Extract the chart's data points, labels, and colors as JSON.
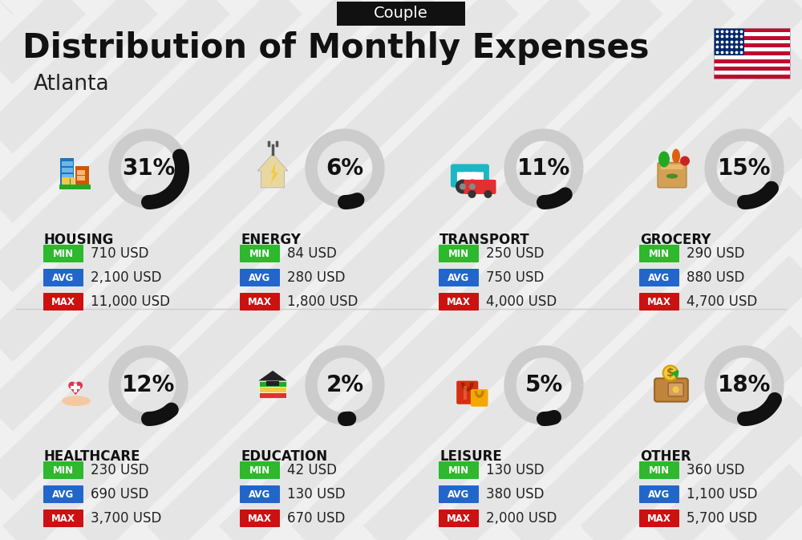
{
  "title": "Distribution of Monthly Expenses",
  "subtitle": "Atlanta",
  "tag": "Couple",
  "bg_color": "#f0f0f0",
  "categories": [
    {
      "name": "HOUSING",
      "pct": 31,
      "min": "710 USD",
      "avg": "2,100 USD",
      "max": "11,000 USD",
      "row": 0,
      "col": 0
    },
    {
      "name": "ENERGY",
      "pct": 6,
      "min": "84 USD",
      "avg": "280 USD",
      "max": "1,800 USD",
      "row": 0,
      "col": 1
    },
    {
      "name": "TRANSPORT",
      "pct": 11,
      "min": "250 USD",
      "avg": "750 USD",
      "max": "4,000 USD",
      "row": 0,
      "col": 2
    },
    {
      "name": "GROCERY",
      "pct": 15,
      "min": "290 USD",
      "avg": "880 USD",
      "max": "4,700 USD",
      "row": 0,
      "col": 3
    },
    {
      "name": "HEALTHCARE",
      "pct": 12,
      "min": "230 USD",
      "avg": "690 USD",
      "max": "3,700 USD",
      "row": 1,
      "col": 0
    },
    {
      "name": "EDUCATION",
      "pct": 2,
      "min": "42 USD",
      "avg": "130 USD",
      "max": "670 USD",
      "row": 1,
      "col": 1
    },
    {
      "name": "LEISURE",
      "pct": 5,
      "min": "130 USD",
      "avg": "380 USD",
      "max": "2,000 USD",
      "row": 1,
      "col": 2
    },
    {
      "name": "OTHER",
      "pct": 18,
      "min": "360 USD",
      "avg": "1,100 USD",
      "max": "5,700 USD",
      "row": 1,
      "col": 3
    }
  ],
  "min_color": "#2db82d",
  "avg_color": "#2266cc",
  "max_color": "#cc1111",
  "circle_bg": "#cccccc",
  "circle_arc": "#111111",
  "title_fontsize": 30,
  "subtitle_fontsize": 19,
  "tag_fontsize": 14,
  "cat_fontsize": 12,
  "val_fontsize": 12,
  "pct_fontsize": 20
}
